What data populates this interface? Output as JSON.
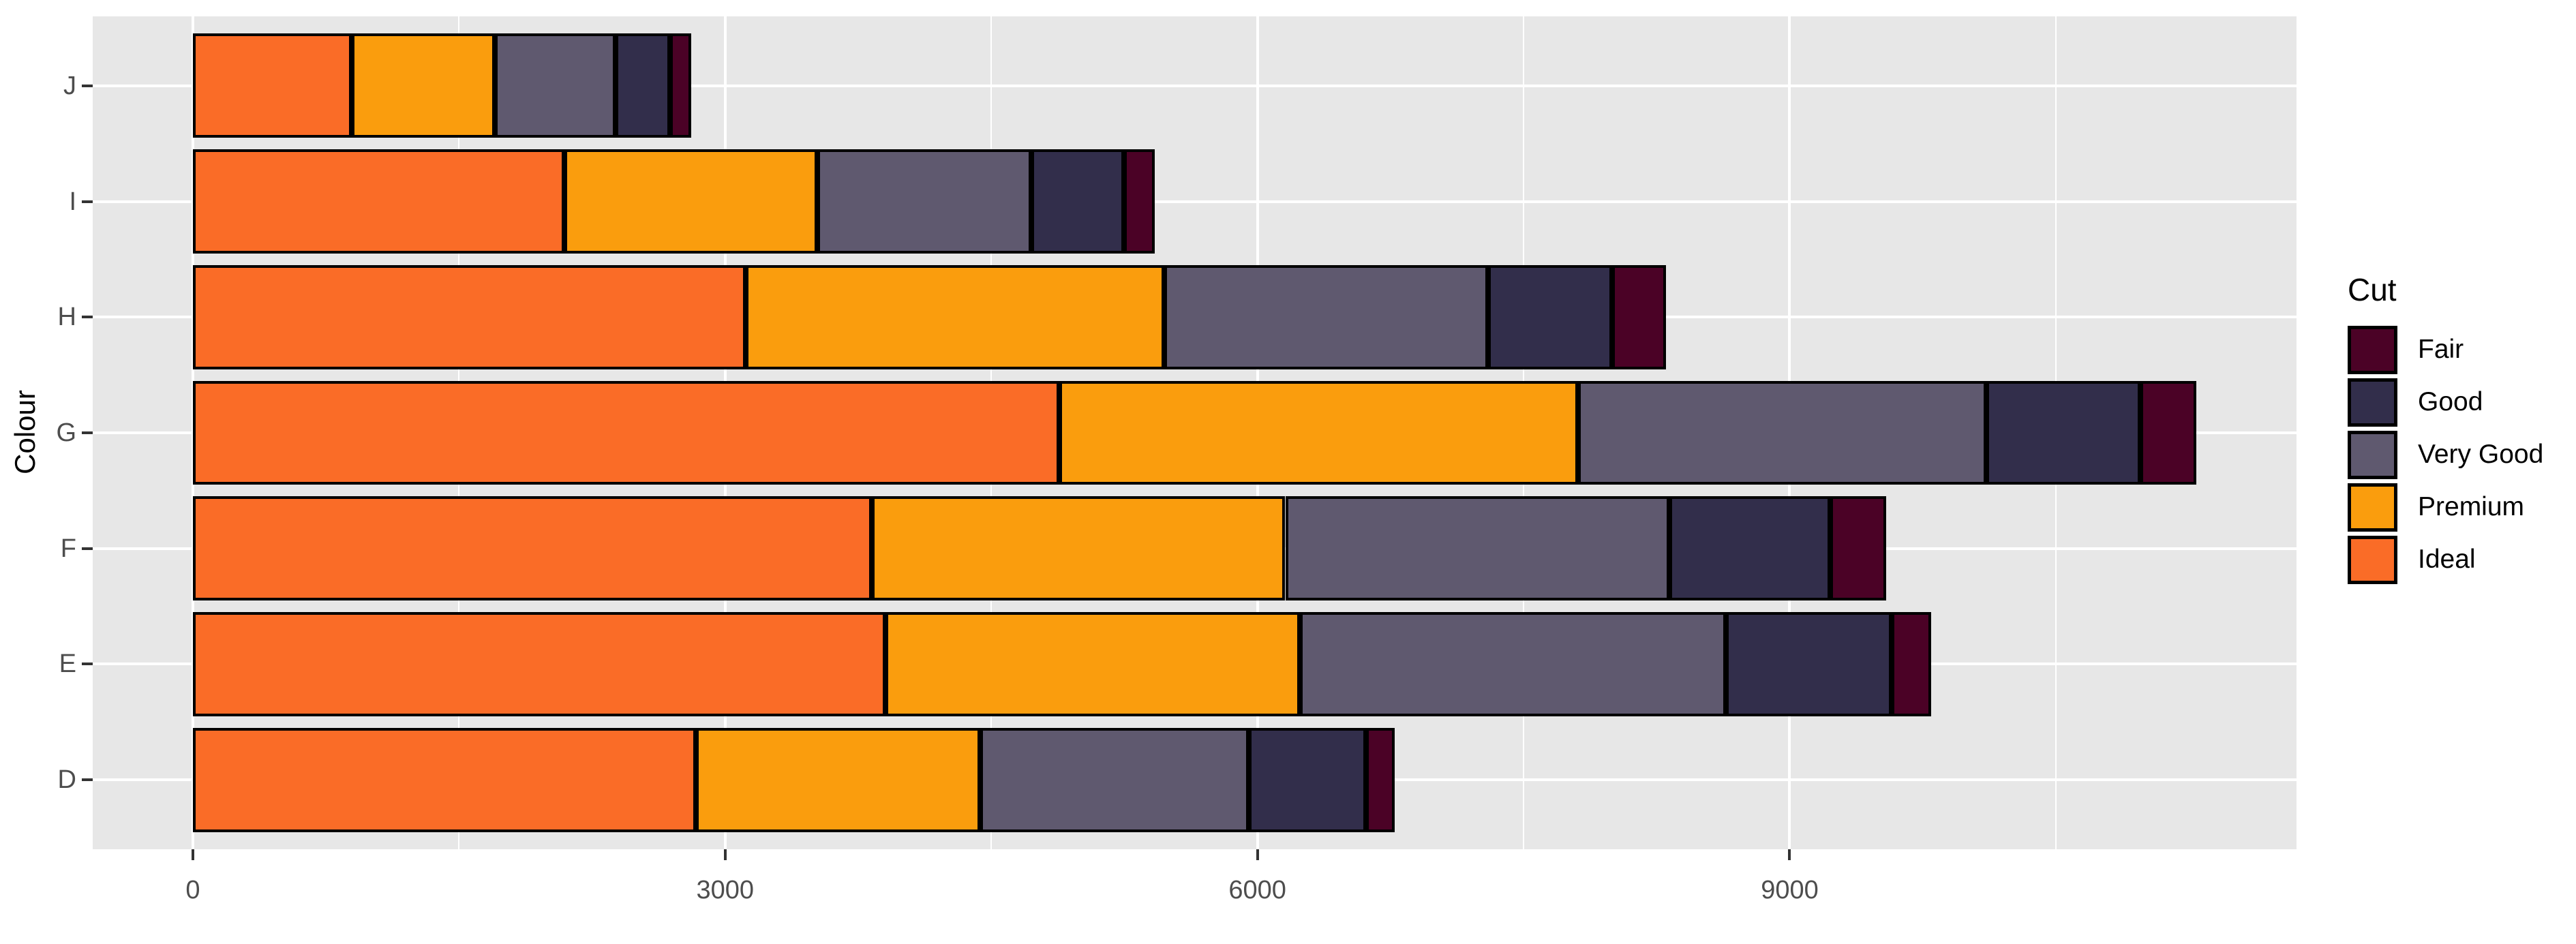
{
  "chart_data": {
    "type": "bar",
    "orientation": "horizontal",
    "stacked": true,
    "title": "",
    "xlabel": "",
    "ylabel": "Colour",
    "categories": [
      "J",
      "I",
      "H",
      "G",
      "F",
      "E",
      "D"
    ],
    "series": [
      {
        "name": "Ideal",
        "color": "#FA6C27",
        "values": [
          896,
          2093,
          3115,
          4884,
          3826,
          3903,
          2834
        ]
      },
      {
        "name": "Premium",
        "color": "#FA9D0D",
        "values": [
          808,
          1428,
          2360,
          2924,
          2331,
          2337,
          1603
        ]
      },
      {
        "name": "Very Good",
        "color": "#5F596F",
        "values": [
          678,
          1204,
          1824,
          2299,
          2164,
          2400,
          1513
        ]
      },
      {
        "name": "Good",
        "color": "#322E4B",
        "values": [
          307,
          522,
          702,
          871,
          909,
          933,
          662
        ]
      },
      {
        "name": "Fair",
        "color": "#4B0226",
        "values": [
          119,
          175,
          303,
          314,
          312,
          224,
          163
        ]
      }
    ],
    "category_totals": [
      2808,
      5422,
      8304,
      11292,
      9542,
      9797,
      6775
    ],
    "x_axis": {
      "major_ticks": [
        0,
        3000,
        6000,
        9000
      ],
      "major_tick_labels": [
        "0",
        "3000",
        "6000",
        "9000"
      ],
      "minor_ticks": [
        1500,
        4500,
        7500,
        10500
      ],
      "range": [
        0,
        11292
      ],
      "expansion_mult": 0.05
    },
    "grid": true,
    "legend": {
      "title": "Cut",
      "position": "right",
      "entries": [
        "Fair",
        "Good",
        "Very Good",
        "Premium",
        "Ideal"
      ]
    },
    "style_colors": {
      "panel_background": "#E7E7E7",
      "gridline": "#FFFFFF",
      "bar_outline": "#000000",
      "tick_mark": "#333333",
      "tick_label": "#4D4D4D",
      "axis_title": "#000000"
    }
  }
}
